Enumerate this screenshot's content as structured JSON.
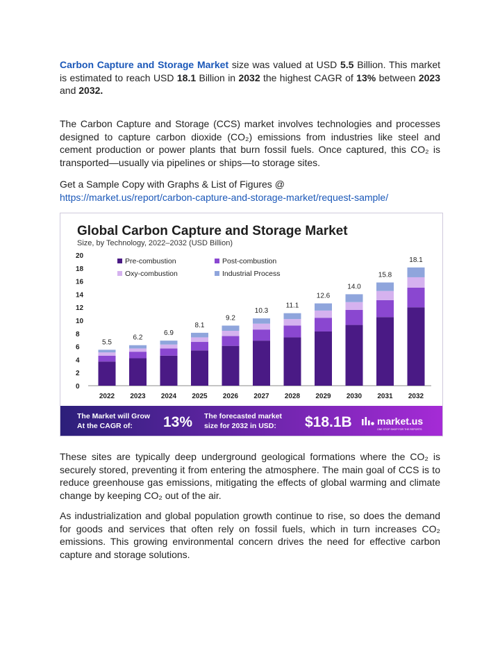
{
  "intro": {
    "t1": "Carbon Capture and Storage Market",
    "t2": " size was valued at USD ",
    "t3": "5.5",
    "t4": " Billion. This market is estimated to reach USD ",
    "t5": "18.1",
    "t6": " Billion in ",
    "t7": "2032",
    "t8": " the highest CAGR of ",
    "t9": "13%",
    "t10": " between ",
    "t11": "2023",
    "t12": " and ",
    "t13": "2032."
  },
  "description": "The Carbon Capture and Storage (CCS) market involves technologies and processes designed to capture carbon dioxide (CO₂) emissions from industries like steel and cement production or power plants that burn fossil fuels. Once captured, this CO₂ is transported—usually via pipelines or ships—to storage sites.",
  "sample": {
    "label": "Get a Sample Copy with Graphs & List of Figures @",
    "url": "https://market.us/report/carbon-capture-and-storage-market/request-sample/"
  },
  "chart_data": {
    "type": "bar",
    "stacked": true,
    "title": "Global Carbon Capture and Storage Market",
    "subtitle": "Size, by Technology, 2022–2032 (USD Billion)",
    "categories": [
      "2022",
      "2023",
      "2024",
      "2025",
      "2026",
      "2027",
      "2028",
      "2029",
      "2030",
      "2031",
      "2032"
    ],
    "totals": [
      5.5,
      6.2,
      6.9,
      8.1,
      9.2,
      10.3,
      11.1,
      12.6,
      14.0,
      15.8,
      18.1
    ],
    "total_labels": [
      "5.5",
      "6.2",
      "6.9",
      "8.1",
      "9.2",
      "10.3",
      "11.1",
      "12.6",
      "14.0",
      "15.8",
      "18.1"
    ],
    "series": [
      {
        "name": "Pre-combustion",
        "color": "#4a1a85",
        "values": [
          3.7,
          4.2,
          4.6,
          5.4,
          6.1,
          6.9,
          7.4,
          8.3,
          9.3,
          10.5,
          12.0
        ]
      },
      {
        "name": "Post-combustion",
        "color": "#8a47d0",
        "values": [
          0.9,
          1.0,
          1.1,
          1.3,
          1.5,
          1.7,
          1.8,
          2.1,
          2.3,
          2.6,
          3.0
        ]
      },
      {
        "name": "Oxy-combustion",
        "color": "#d5b2ef",
        "values": [
          0.5,
          0.5,
          0.6,
          0.7,
          0.8,
          0.9,
          1.0,
          1.1,
          1.2,
          1.4,
          1.6
        ]
      },
      {
        "name": "Industrial Process",
        "color": "#8fa5dc",
        "values": [
          0.4,
          0.5,
          0.6,
          0.7,
          0.8,
          0.8,
          0.9,
          1.1,
          1.2,
          1.3,
          1.5
        ]
      }
    ],
    "ylim": [
      0,
      20
    ],
    "yticks": [
      "0",
      "2",
      "4",
      "6",
      "8",
      "10",
      "12",
      "14",
      "16",
      "18",
      "20"
    ],
    "grid": false,
    "legend": "top-left"
  },
  "banner": {
    "grow_line1": "The Market will Grow",
    "grow_line2": "At the CAGR of:",
    "cagr": "13%",
    "forecast_line1": "The forecasted market",
    "forecast_line2": "size for 2032 in USD:",
    "forecast_value": "$18.1B",
    "brand": "market.us",
    "tagline": "ONE STOP SHOP FOR THE REPORTS",
    "colors": {
      "start": "#2c1f7a",
      "end": "#a52bd6"
    }
  },
  "para_sites": "These sites are typically deep underground geological formations where the CO₂ is securely stored, preventing it from entering the atmosphere. The main goal of CCS is to reduce greenhouse gas emissions, mitigating the effects of global warming and climate change by keeping CO₂ out of the air.",
  "para_growth": "As industrialization and global population growth continue to rise, so does the demand for goods and services that often rely on fossil fuels, which in turn increases CO₂ emissions. This growing environmental concern drives the need for effective carbon capture and storage solutions."
}
